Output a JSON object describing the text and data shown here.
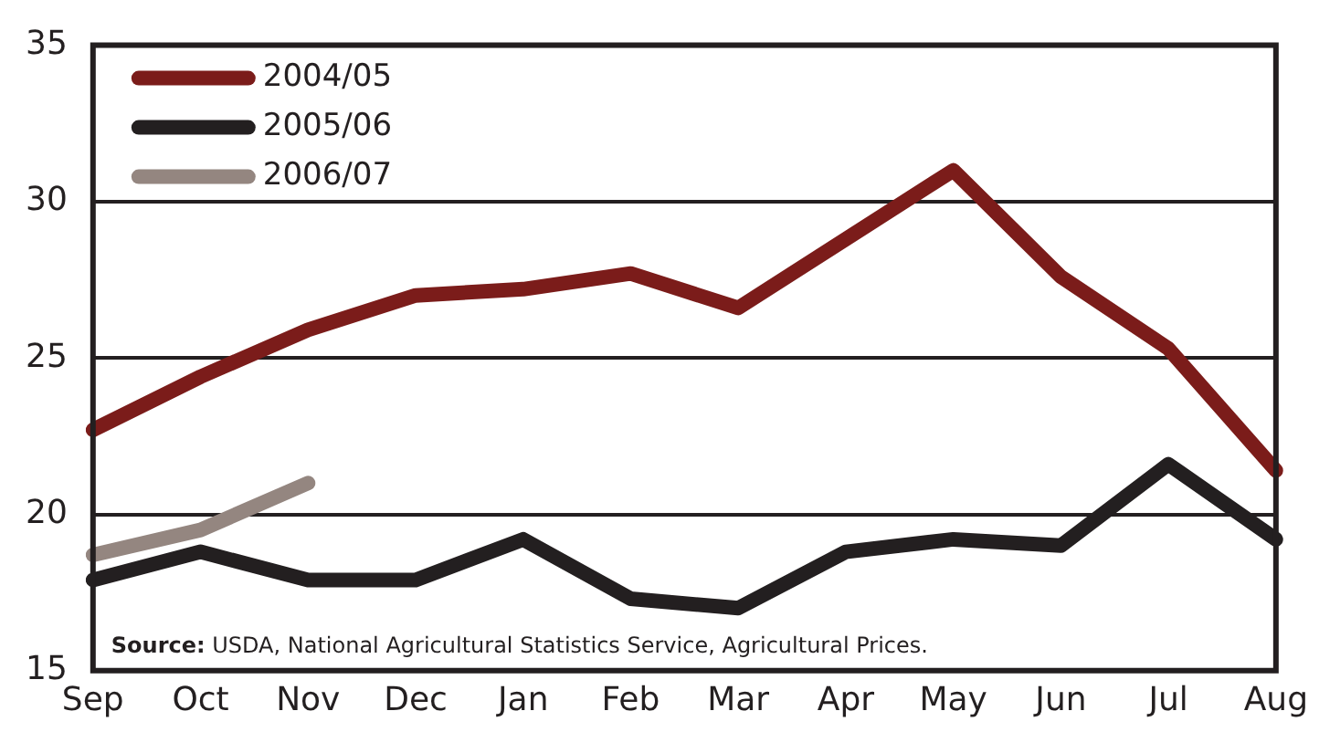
{
  "chart_data": {
    "type": "line",
    "categories": [
      "Sep",
      "Oct",
      "Nov",
      "Dec",
      "Jan",
      "Feb",
      "Mar",
      "Apr",
      "May",
      "Jun",
      "Jul",
      "Aug"
    ],
    "series": [
      {
        "name": "2004/05",
        "color": "#7b1c1a",
        "values": [
          22.7,
          24.4,
          25.9,
          27.0,
          27.2,
          27.7,
          26.6,
          28.8,
          31.0,
          27.6,
          25.3,
          21.4
        ]
      },
      {
        "name": "2005/06",
        "color": "#231f20",
        "values": [
          17.9,
          18.8,
          17.9,
          17.9,
          19.2,
          17.3,
          17.0,
          18.8,
          19.2,
          19.0,
          21.6,
          19.2
        ]
      },
      {
        "name": "2006/07",
        "color": "#948680",
        "values": [
          18.7,
          19.5,
          21.0,
          null,
          null,
          null,
          null,
          null,
          null,
          null,
          null,
          null
        ]
      }
    ],
    "ylim": [
      15,
      35
    ],
    "yticks": [
      15,
      20,
      25,
      30,
      35
    ],
    "grid": "y",
    "legend": "top left",
    "marker": "none",
    "line_style": "solid",
    "annotations": [
      "Source: USDA, National Agricultural Statistics Service, Agricultural Prices."
    ]
  }
}
